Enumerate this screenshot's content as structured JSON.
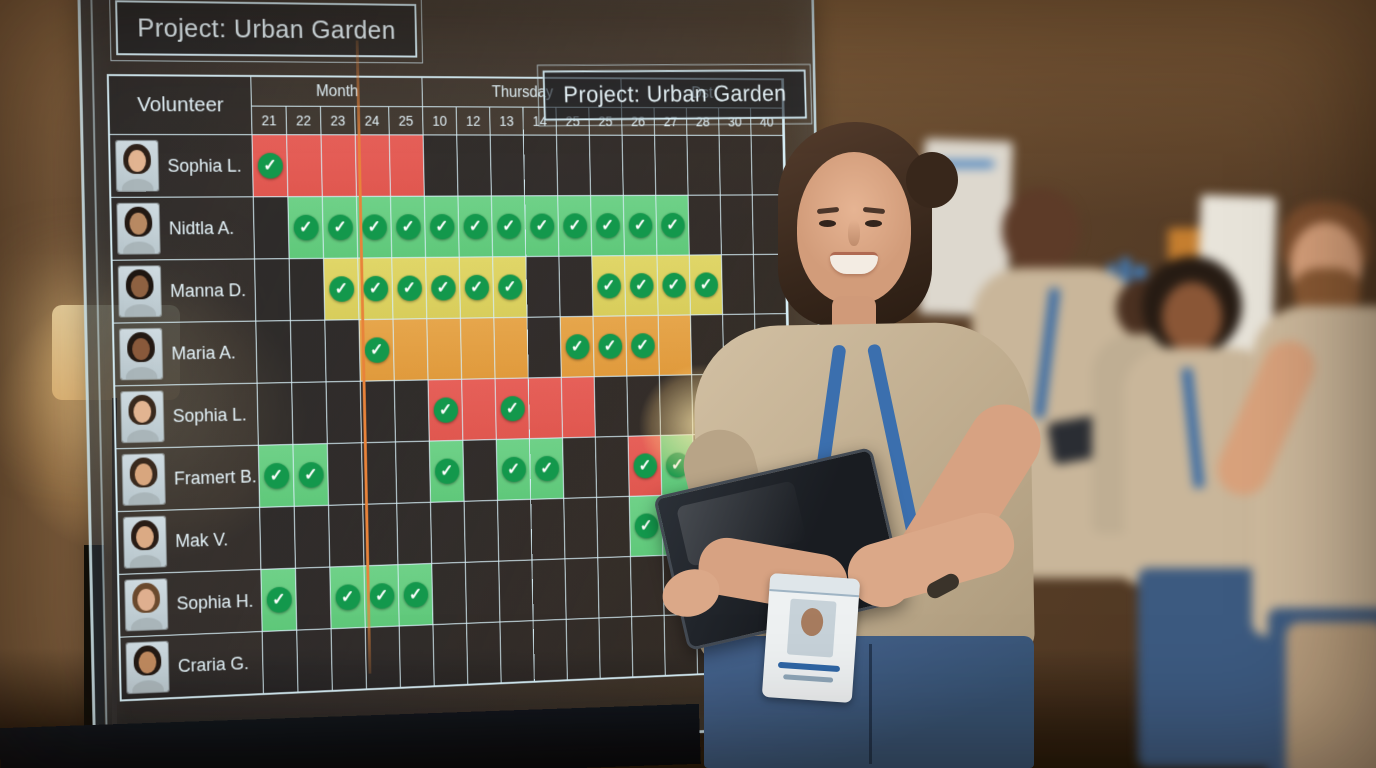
{
  "board": {
    "title": "Project: Urban Garden",
    "title_secondary": "Project: Urban Garden",
    "table": {
      "volunteer_header": "Volunteer",
      "day_groups": [
        {
          "label": "Month",
          "span": 5
        },
        {
          "label": "Thursday",
          "span": 6
        },
        {
          "label": "Dst",
          "span": 5
        }
      ],
      "days": [
        "21",
        "22",
        "23",
        "24",
        "25",
        "10",
        "12",
        "13",
        "14",
        "25",
        "25",
        "26",
        "27",
        "28",
        "30",
        "40"
      ],
      "rows": [
        {
          "name": "Sophia L.",
          "cells": [
            "Rc",
            "R",
            "R",
            "R",
            "R",
            "",
            "",
            "",
            "",
            "",
            "",
            "",
            "",
            "",
            "",
            ""
          ]
        },
        {
          "name": "Nidtla A.",
          "cells": [
            "",
            "G",
            "G",
            "G",
            "G",
            "G",
            "G",
            "G",
            "G",
            "G",
            "G",
            "G",
            "G",
            "",
            "",
            ""
          ]
        },
        {
          "name": "Manna D.",
          "cells": [
            "",
            "",
            "Y",
            "Y",
            "Y",
            "Y",
            "Y",
            "Y",
            "",
            "",
            "Y",
            "Y",
            "Y",
            "Y",
            "",
            ""
          ]
        },
        {
          "name": "Maria A.",
          "cells": [
            "",
            "",
            "",
            "Oc",
            "O",
            "O",
            "O",
            "O",
            "",
            "Oc",
            "Oc",
            "Oc",
            "O",
            "",
            "",
            ""
          ]
        },
        {
          "name": "Sophia L.",
          "cells": [
            "",
            "",
            "",
            "",
            "",
            "Rc",
            "R",
            "Rc",
            "R",
            "R",
            "",
            "",
            "",
            "",
            "",
            ""
          ]
        },
        {
          "name": "Framert B.",
          "cells": [
            "G",
            "G",
            "",
            "",
            "",
            "G",
            "",
            "G",
            "G",
            "",
            "",
            "Rc",
            "G",
            "",
            "",
            ""
          ]
        },
        {
          "name": "Mak V.",
          "cells": [
            "",
            "",
            "",
            "",
            "",
            "",
            "",
            "",
            "",
            "",
            "",
            "G",
            "G",
            "",
            "",
            ""
          ]
        },
        {
          "name": "Sophia H.",
          "cells": [
            "G",
            "",
            "G",
            "G",
            "G",
            "",
            "",
            "",
            "",
            "",
            "",
            "",
            "",
            "",
            "",
            ""
          ]
        },
        {
          "name": "Craria G.",
          "cells": [
            "",
            "",
            "",
            "",
            "",
            "",
            "",
            "",
            "",
            "",
            "",
            "",
            "",
            "",
            "",
            ""
          ]
        }
      ],
      "cell_states": {
        "R": "red",
        "G": "green-checked",
        "Y": "yellow-checked",
        "O": "orange",
        "c_suffix": "checked"
      }
    }
  },
  "icons": {
    "check": "✓"
  },
  "avatars": [
    {
      "skin": "#e3b592",
      "hair": "#2e2119"
    },
    {
      "skin": "#b98a63",
      "hair": "#241a14"
    },
    {
      "skin": "#8f6242",
      "hair": "#1f1712"
    },
    {
      "skin": "#8a5a3c",
      "hair": "#241a14"
    },
    {
      "skin": "#e3b592",
      "hair": "#3a2a1e"
    },
    {
      "skin": "#d9a77f",
      "hair": "#3a2a1e"
    },
    {
      "skin": "#dcab85",
      "hair": "#2a1d16"
    },
    {
      "skin": "#e0b090",
      "hair": "#6b4a2e"
    },
    {
      "skin": "#c08a5f",
      "hair": "#241a14"
    }
  ],
  "colors": {
    "cell_red": "#e0574f",
    "cell_green": "#5fc87a",
    "cell_yellow": "#d8cd5b",
    "cell_orange": "#e09a3c",
    "check_green": "#13984c",
    "grid_line": "#d6eef6",
    "board_text": "#e4f3f9",
    "today_line": "#e8833a",
    "lanyard_blue": "#3b6fae",
    "shirt_beige": "#c6b296"
  }
}
